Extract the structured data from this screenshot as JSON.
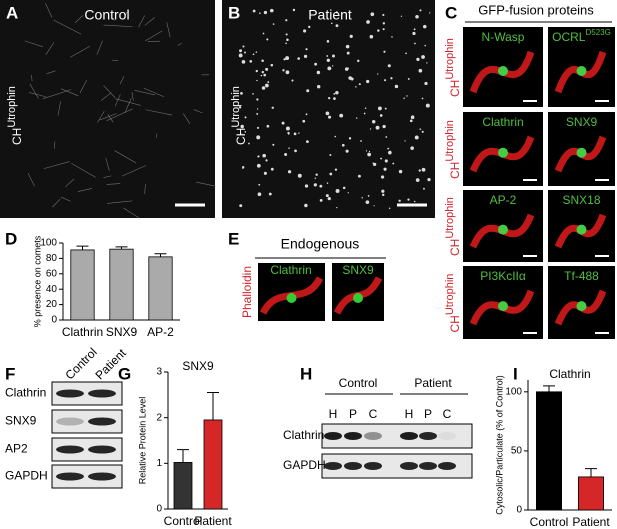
{
  "panels": {
    "A": {
      "letter": "A",
      "title": "Control",
      "stain": "CH",
      "stain_sup": "Utrophin"
    },
    "B": {
      "letter": "B",
      "title": "Patient",
      "stain": "CH",
      "stain_sup": "Utrophin"
    },
    "C": {
      "letter": "C",
      "title": "GFP-fusion proteins",
      "stain": "CH",
      "stain_sup": "Utrophin",
      "items": [
        {
          "name": "N-Wasp"
        },
        {
          "name": "OCRL",
          "sup": "D523G"
        },
        {
          "name": "Clathrin"
        },
        {
          "name": "SNX9"
        },
        {
          "name": "AP-2"
        },
        {
          "name": "SNX18"
        },
        {
          "name": "PI3KcIIα"
        },
        {
          "name": "Tf-488"
        }
      ]
    },
    "D": {
      "letter": "D"
    },
    "E": {
      "letter": "E",
      "title": "Endogenous",
      "labels": [
        "Clathrin",
        "SNX9"
      ],
      "stain": "Phalloidin"
    },
    "F": {
      "letter": "F",
      "columns": [
        "Control",
        "Patient"
      ],
      "rows": [
        "Clathrin",
        "SNX9",
        "AP2",
        "GAPDH"
      ]
    },
    "G": {
      "letter": "G"
    },
    "H": {
      "letter": "H",
      "groups": [
        "Control",
        "Patient"
      ],
      "lanes": [
        "H",
        "P",
        "C"
      ],
      "rows": [
        "Clathrin",
        "GAPDH"
      ]
    },
    "I": {
      "letter": "I"
    }
  },
  "chart_data": [
    {
      "type": "bar",
      "y_label": "% presence on comets",
      "categories": [
        "Clathrin",
        "SNX9",
        "AP-2"
      ],
      "values": [
        91,
        92,
        82
      ],
      "errors": [
        5,
        3,
        4
      ],
      "colors": [
        "#aaaaaa",
        "#aaaaaa",
        "#aaaaaa"
      ],
      "ylim": [
        0,
        100
      ],
      "yticks": [
        0,
        20,
        40,
        60,
        80,
        100
      ]
    },
    {
      "type": "bar",
      "title": "SNX9",
      "y_label": "Relative Protein Level",
      "categories": [
        "Control",
        "Patient"
      ],
      "values": [
        1.02,
        1.95
      ],
      "errors": [
        0.28,
        0.6
      ],
      "colors": [
        "#333333",
        "#d62728"
      ],
      "ylim": [
        0,
        3
      ],
      "yticks": [
        0,
        1,
        2,
        3
      ]
    },
    {
      "type": "bar",
      "title": "Clathrin",
      "y_label": "Cytosolic/Particulate (% of Control)",
      "categories": [
        "Control",
        "Patient"
      ],
      "values": [
        100,
        28
      ],
      "errors": [
        5,
        7
      ],
      "colors": [
        "#000000",
        "#d62728"
      ],
      "ylim": [
        0,
        110
      ],
      "yticks": [
        0,
        50,
        100
      ]
    }
  ]
}
